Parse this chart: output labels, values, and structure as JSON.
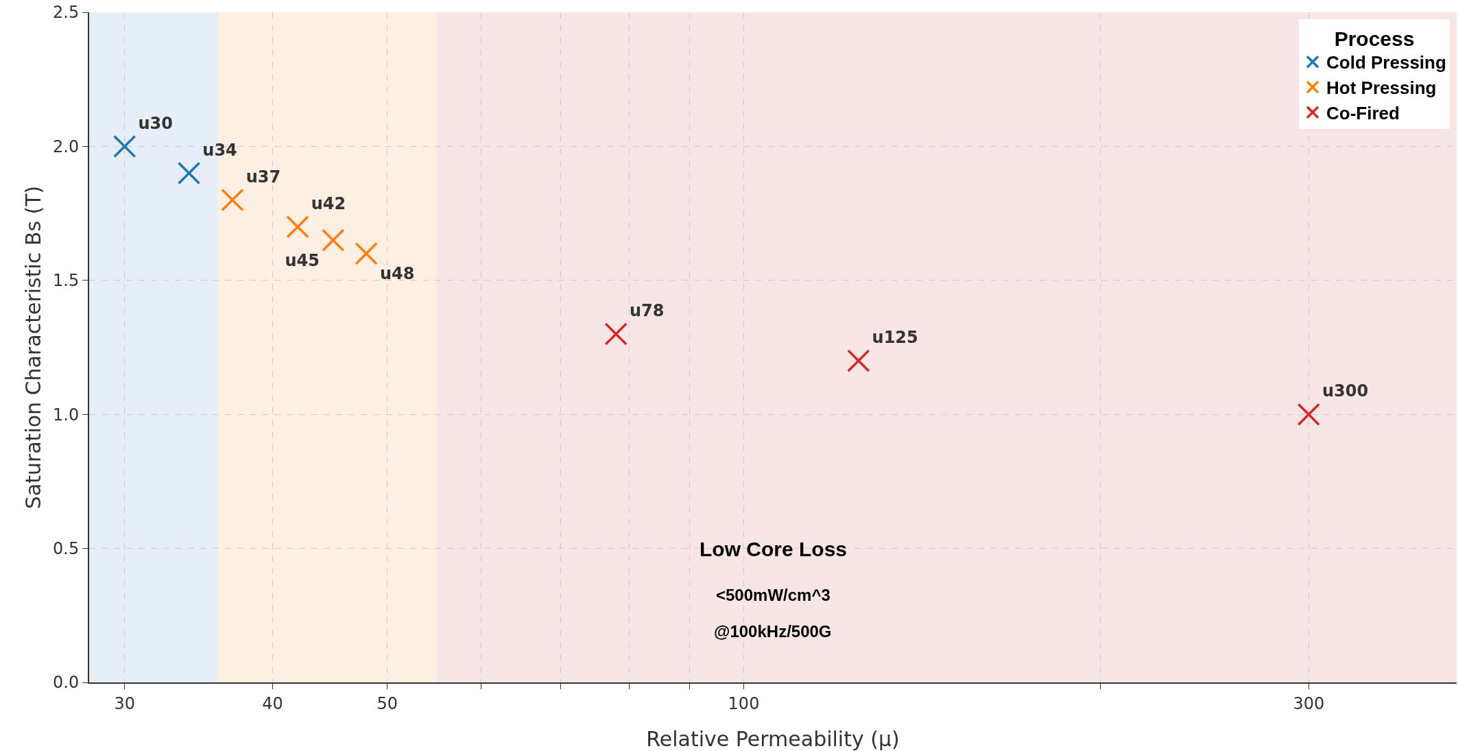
{
  "chart_data": {
    "type": "scatter",
    "xlabel": "Relative Permeability (μ)",
    "ylabel": "Saturation Characteristic Bs (T)",
    "legend_title": "Process",
    "log": "x",
    "xlim": [
      28,
      400
    ],
    "xticks": [
      30,
      40,
      50,
      {
        "value": 60,
        "label": null
      },
      {
        "value": 70,
        "label": null
      },
      {
        "value": 80,
        "label": null
      },
      {
        "value": 90,
        "label": null
      },
      100,
      {
        "value": 200,
        "label": null
      },
      300
    ],
    "ylim": [
      0,
      2.5
    ],
    "yticks": [
      {
        "value": 0,
        "label": "0.0"
      },
      0.5,
      {
        "value": 1,
        "label": "1.0"
      },
      1.5,
      {
        "value": 2,
        "label": "2.0"
      },
      2.5
    ],
    "grid": true,
    "legend": "top right",
    "marker": "cross",
    "series": [
      {
        "name": "Cold Pressing",
        "color": "#1f77b4",
        "x": [
          30,
          34
        ],
        "values": [
          2.0,
          1.9
        ],
        "value_labels": [
          "u30",
          "u34"
        ]
      },
      {
        "name": "Hot Pressing",
        "color": "#ff7f0e",
        "x": [
          37,
          42,
          45,
          48
        ],
        "values": [
          1.8,
          1.7,
          1.65,
          1.6
        ],
        "value_labels": [
          "u37",
          "u42",
          "u45",
          "u48"
        ]
      },
      {
        "name": "Co-Fired",
        "color": "#d62728",
        "x": [
          78,
          125,
          300
        ],
        "values": [
          1.3,
          1.2,
          1.0
        ],
        "value_labels": [
          "u78",
          "u125",
          "u300"
        ]
      }
    ],
    "bands": [
      {
        "axis": "x",
        "from": 28,
        "to": 36,
        "color": "#e6eef7"
      },
      {
        "axis": "x",
        "from": 36,
        "to": 55,
        "color": "#fdefe2"
      },
      {
        "axis": "x",
        "from": 55,
        "to": 400,
        "color": "#f8e5e5"
      }
    ],
    "annotations": [
      "Low Core Loss",
      "<500mW/cm^3",
      "@100kHz/500G"
    ]
  }
}
